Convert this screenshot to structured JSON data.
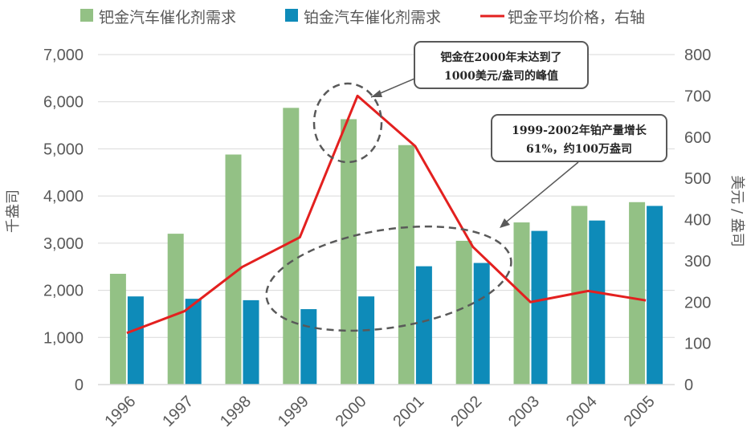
{
  "chart_data": {
    "type": "bar",
    "categories": [
      "1996",
      "1997",
      "1998",
      "1999",
      "2000",
      "2001",
      "2002",
      "2003",
      "2004",
      "2005"
    ],
    "series": [
      {
        "name": "钯金汽车催化剂需求",
        "type": "bar",
        "axis": "left",
        "color": "#93c185",
        "values": [
          2350,
          3200,
          4880,
          5870,
          5630,
          5080,
          3050,
          3440,
          3790,
          3870
        ]
      },
      {
        "name": "铂金汽车催化剂需求",
        "type": "bar",
        "axis": "left",
        "color": "#0e8bb9",
        "values": [
          1870,
          1820,
          1790,
          1600,
          1870,
          2510,
          2580,
          3260,
          3480,
          3790
        ]
      },
      {
        "name": "钯金平均价格，右轴",
        "type": "line",
        "axis": "right",
        "color": "#e3201f",
        "values": [
          125,
          178,
          285,
          357,
          700,
          578,
          334,
          200,
          227,
          204
        ]
      }
    ],
    "y_left": {
      "label": "千盎司",
      "min": 0,
      "max": 7000,
      "step": 1000,
      "tick_labels": [
        "0",
        "1,000",
        "2,000",
        "3,000",
        "4,000",
        "5,000",
        "6,000",
        "7,000"
      ]
    },
    "y_right": {
      "label": "美元 / 盎司",
      "min": 0,
      "max": 800,
      "step": 100,
      "tick_labels": [
        "0",
        "100",
        "200",
        "300",
        "400",
        "500",
        "600",
        "700",
        "800"
      ]
    },
    "annotations": [
      {
        "id": "peak",
        "text_lines": [
          "钯金在2000年末达到了",
          "1000美元/盎司的峰值"
        ]
      },
      {
        "id": "growth",
        "text_lines": [
          "1999-2002年铂产量增长",
          "61%，约100万盎司"
        ]
      }
    ]
  }
}
